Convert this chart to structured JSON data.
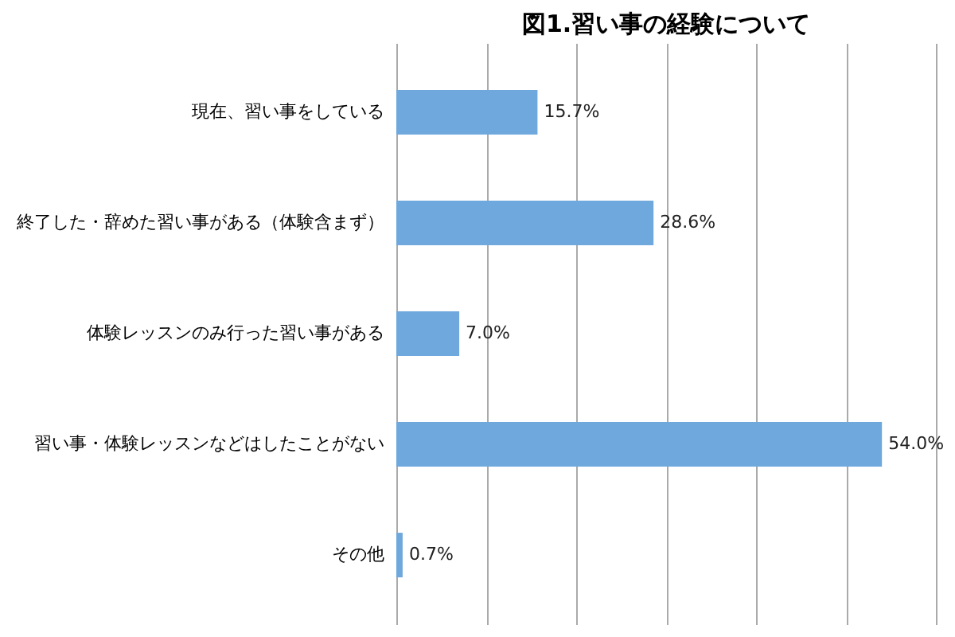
{
  "chart_data": {
    "type": "bar",
    "orientation": "horizontal",
    "title": "図1.習い事の経験について",
    "categories": [
      "現在、習い事をしている",
      "終了した・辞めた習い事がある（体験含まず）",
      "体験レッスンのみ行った習い事がある",
      "習い事・体験レッスンなどはしたことがない",
      "その他"
    ],
    "values": [
      15.7,
      28.6,
      7.0,
      54.0,
      0.7
    ],
    "value_labels": [
      "15.7%",
      "28.6%",
      "7.0%",
      "54.0%",
      "0.7%"
    ],
    "color": "#6fa8dc",
    "xlim": [
      0,
      60
    ],
    "xticks": [
      {
        "value": 0,
        "label": null
      },
      {
        "value": 10,
        "label": null
      },
      {
        "value": 20,
        "label": null
      },
      {
        "value": 30,
        "label": null
      },
      {
        "value": 40,
        "label": null
      },
      {
        "value": 50,
        "label": null
      },
      {
        "value": 60,
        "label": null
      }
    ],
    "grid": "x",
    "tick_labels": "y"
  }
}
